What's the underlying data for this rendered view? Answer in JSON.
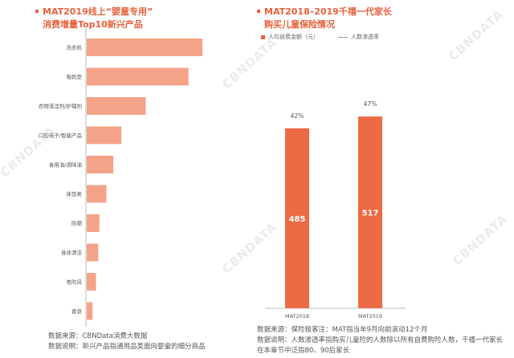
{
  "watermark": "CBNDATA",
  "left": {
    "title_line1": "MAT2019线上“婴童专用”",
    "title_line2": "消费增量Top10新兴产品",
    "source_line1": "数据来源：CBNData消费大数据",
    "source_line2": "数据说明：新兴产品指通用品类面向婴童的细分商品"
  },
  "right": {
    "title_line1": "MAT2018–2019千禧一代家长",
    "title_line2": "购买儿童保险情况",
    "legend_bar": "人均自费金额（元）",
    "legend_line": "人数渗透率",
    "source_line1": "数据来源：保险极客注：MAT指当年9月向前滚动12个月",
    "source_line2": "数据说明：人数渗透率指购买儿童险的人数除以所有自费购险人数，千禧一代家长",
    "source_line3": "在本章节中泛指80、90后家长"
  },
  "colors": {
    "accent": "#e8603c",
    "bar_light": "#f4a388",
    "bar_dark": "#ec6a44"
  },
  "chart_data": [
    {
      "type": "bar",
      "orientation": "horizontal",
      "title": "MAT2019线上“婴童专用”消费增量Top10新兴产品",
      "categories": [
        "洗衣机",
        "吸奶垫",
        "衣物清洁剂/护理剂",
        "口腔电子/智能产品",
        "食用油/调味油",
        "床垫类",
        "防晒",
        "身体清洁",
        "电吹风",
        "香皂"
      ],
      "values": [
        100,
        88,
        51,
        30,
        23,
        17,
        11,
        10,
        8,
        5
      ],
      "xlim": [
        0,
        100
      ],
      "value_labels_shown": false,
      "grid": false
    },
    {
      "type": "bar",
      "title": "MAT2018–2019千禧一代家长购买儿童保险情况",
      "categories": [
        "MAT2018",
        "MAT2019"
      ],
      "series": [
        {
          "name": "人均自费金额（元）",
          "values": [
            485,
            517
          ]
        },
        {
          "name": "人数渗透率",
          "values": [
            42,
            47
          ],
          "labels": [
            "42%",
            "47%"
          ]
        }
      ],
      "ylim": [
        0,
        580
      ],
      "legend": "top-left",
      "grid": false
    }
  ]
}
